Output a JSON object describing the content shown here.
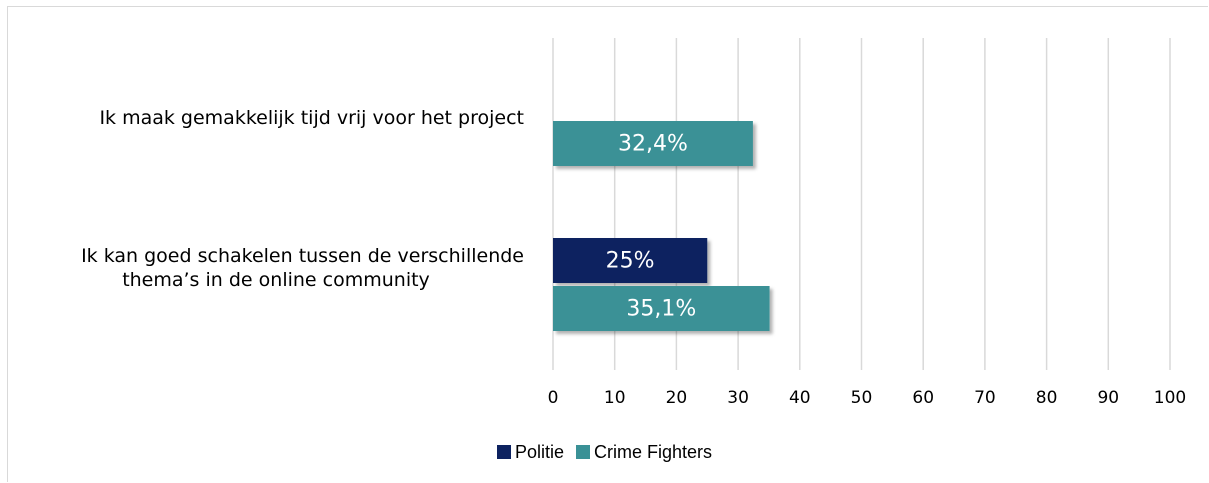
{
  "chart_data": {
    "type": "bar",
    "orientation": "horizontal",
    "categories": [
      [
        "Ik maak gemakkelijk tijd vrij voor het project"
      ],
      [
        "Ik kan goed schakelen tussen de verschillende",
        "thema’s in de online community"
      ]
    ],
    "series": [
      {
        "name": "Politie",
        "color": "#0d2260",
        "values": [
          null,
          25
        ],
        "labels": [
          "",
          "25%"
        ]
      },
      {
        "name": "Crime Fighters",
        "color": "#3a9196",
        "values": [
          32.4,
          35.1
        ],
        "labels": [
          "32,4%",
          "35,1%"
        ]
      }
    ],
    "xlim": [
      0,
      100
    ],
    "xticks": [
      "0",
      "10",
      "20",
      "30",
      "40",
      "50",
      "60",
      "70",
      "80",
      "90",
      "100"
    ],
    "grid": true,
    "legend_position": "bottom"
  }
}
